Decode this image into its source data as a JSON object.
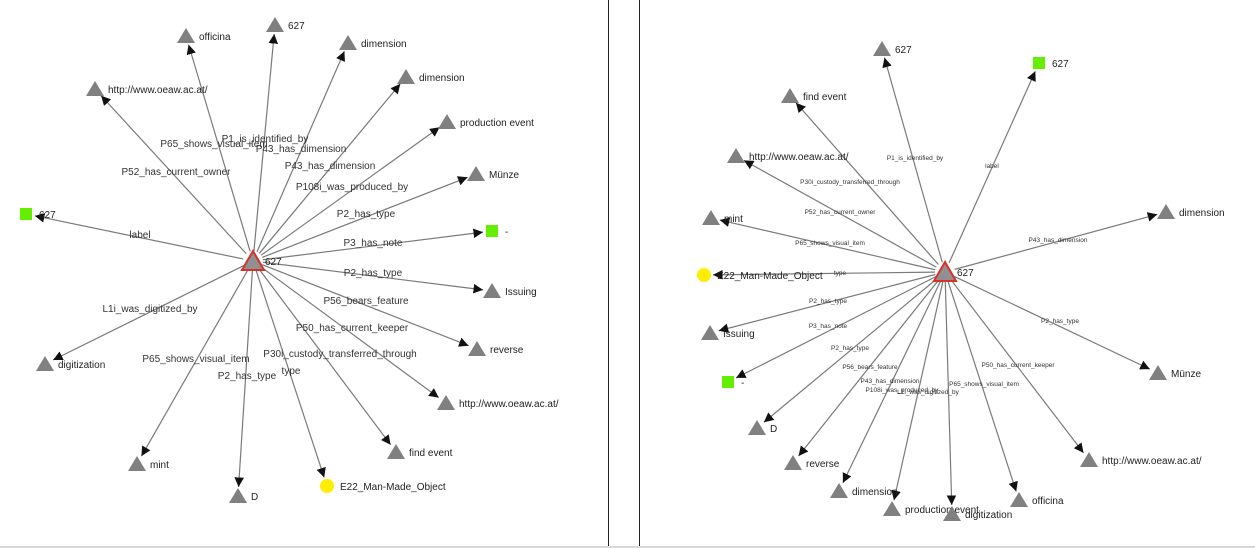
{
  "colors": {
    "edge": "#7a7a7a",
    "triangle": "#808080",
    "center_fill": "#909090",
    "center_stroke": "#d9302a",
    "square": "#66ee00",
    "circle": "#ffee00"
  },
  "left_graph": {
    "center": {
      "label": "627"
    },
    "nodes": [
      {
        "label": "officina",
        "shape": "triangle",
        "edge": "P65_shows_visual_item"
      },
      {
        "label": "627",
        "shape": "triangle",
        "edge": "P1_is_identified_by"
      },
      {
        "label": "dimension",
        "shape": "triangle",
        "edge": "P43_has_dimension"
      },
      {
        "label": "dimension",
        "shape": "triangle",
        "edge": "P43_has_dimension"
      },
      {
        "label": "production event",
        "shape": "triangle",
        "edge": "P108i_was_produced_by"
      },
      {
        "label": "Münze",
        "shape": "triangle",
        "edge": "P2_has_type"
      },
      {
        "label": "-",
        "shape": "square",
        "edge": "P3_has_note"
      },
      {
        "label": "Issuing",
        "shape": "triangle",
        "edge": "P2_has_type"
      },
      {
        "label": "reverse",
        "shape": "triangle",
        "edge": "P56_bears_feature"
      },
      {
        "label": "http://www.oeaw.ac.at/",
        "shape": "triangle",
        "edge": "P50_has_current_keeper"
      },
      {
        "label": "find event",
        "shape": "triangle",
        "edge": "P30i_custody_transferred_through"
      },
      {
        "label": "E22_Man-Made_Object",
        "shape": "circle",
        "edge": "type"
      },
      {
        "label": "D",
        "shape": "triangle",
        "edge": "P2_has_type"
      },
      {
        "label": "mint",
        "shape": "triangle",
        "edge": "P65_shows_visual_item"
      },
      {
        "label": "digitization",
        "shape": "triangle",
        "edge": "L1i_was_digitized_by"
      },
      {
        "label": "627",
        "shape": "square",
        "edge": "label"
      },
      {
        "label": "http://www.oeaw.ac.at/",
        "shape": "triangle",
        "edge": "P52_has_current_owner"
      }
    ]
  },
  "right_graph": {
    "center": {
      "label": "627"
    },
    "nodes": [
      {
        "label": "627",
        "shape": "triangle",
        "edge": "P1_is_identified_by"
      },
      {
        "label": "627",
        "shape": "square",
        "edge": "label"
      },
      {
        "label": "find event",
        "shape": "triangle",
        "edge": "P30i_custody_transferred_through"
      },
      {
        "label": "http://www.oeaw.ac.at/",
        "shape": "triangle",
        "edge": "P52_has_current_owner"
      },
      {
        "label": "mint",
        "shape": "triangle",
        "edge": "P65_shows_visual_item"
      },
      {
        "label": "E22_Man-Made_Object",
        "shape": "circle",
        "edge": "type"
      },
      {
        "label": "Issuing",
        "shape": "triangle",
        "edge": "P2_has_type"
      },
      {
        "label": "-",
        "shape": "square",
        "edge": "P3_has_note"
      },
      {
        "label": "D",
        "shape": "triangle",
        "edge": "P2_has_type"
      },
      {
        "label": "reverse",
        "shape": "triangle",
        "edge": "P56_bears_feature"
      },
      {
        "label": "dimension",
        "shape": "triangle",
        "edge": "P43_has_dimension"
      },
      {
        "label": "production event",
        "shape": "triangle",
        "edge": "P108i_was_produced_by"
      },
      {
        "label": "digitization",
        "shape": "triangle",
        "edge": "L1i_was_digitized_by"
      },
      {
        "label": "officina",
        "shape": "triangle",
        "edge": "P65_shows_visual_item"
      },
      {
        "label": "http://www.oeaw.ac.at/",
        "shape": "triangle",
        "edge": "P50_has_current_keeper"
      },
      {
        "label": "Münze",
        "shape": "triangle",
        "edge": "P2_has_type"
      },
      {
        "label": "dimension",
        "shape": "triangle",
        "edge": "P43_has_dimension"
      }
    ]
  }
}
